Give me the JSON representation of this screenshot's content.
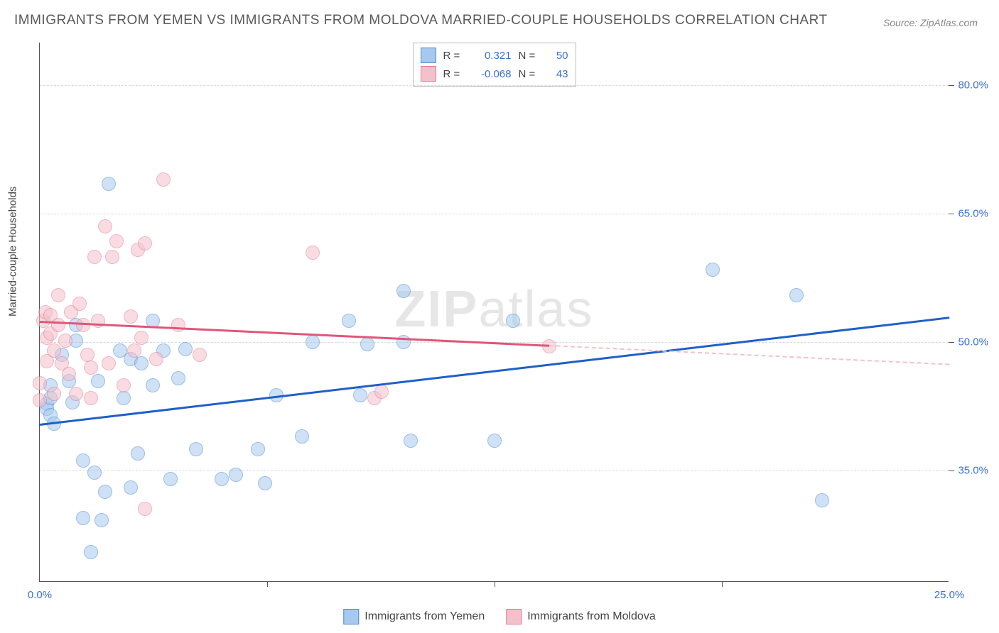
{
  "title": "IMMIGRANTS FROM YEMEN VS IMMIGRANTS FROM MOLDOVA MARRIED-COUPLE HOUSEHOLDS CORRELATION CHART",
  "source": "Source: ZipAtlas.com",
  "watermark_a": "ZIP",
  "watermark_b": "atlas",
  "ylabel": "Married-couple Households",
  "chart": {
    "type": "scatter",
    "background_color": "#ffffff",
    "grid_color": "#d8d8d8",
    "axis_color": "#555555",
    "xlim": [
      0,
      25
    ],
    "ylim": [
      22,
      85
    ],
    "xticks_major": [
      0,
      25
    ],
    "xticks_minor": [
      6.25,
      12.5,
      18.75
    ],
    "yticks": [
      35,
      50,
      65,
      80
    ],
    "xtick_labels": [
      "0.0%",
      "25.0%"
    ],
    "ytick_labels": [
      "35.0%",
      "50.0%",
      "65.0%",
      "80.0%"
    ],
    "tick_label_color": "#3a6fd8",
    "tick_label_fontsize": 15,
    "point_radius": 10,
    "point_opacity": 0.55,
    "series": [
      {
        "name": "Immigrants from Yemen",
        "fill_color": "#a7c9ee",
        "stroke_color": "#4b8ad6",
        "r_label": "R =",
        "r_value": "0.321",
        "n_label": "N =",
        "n_value": "50",
        "trend": {
          "x1": 0,
          "y1": 40.5,
          "x2": 25,
          "y2": 53,
          "solid_until_x": 25,
          "color": "#1f5fc9"
        },
        "points": [
          [
            0.2,
            42.8
          ],
          [
            0.2,
            42.2
          ],
          [
            0.3,
            41.5
          ],
          [
            0.3,
            43.5
          ],
          [
            0.3,
            45
          ],
          [
            0.4,
            40.5
          ],
          [
            0.6,
            48.5
          ],
          [
            0.8,
            45.5
          ],
          [
            0.9,
            43
          ],
          [
            1.0,
            52
          ],
          [
            1.0,
            50.2
          ],
          [
            1.2,
            36.2
          ],
          [
            1.2,
            29.5
          ],
          [
            1.4,
            25.5
          ],
          [
            1.5,
            34.8
          ],
          [
            1.6,
            45.5
          ],
          [
            1.7,
            29.2
          ],
          [
            1.8,
            32.5
          ],
          [
            1.9,
            68.5
          ],
          [
            2.2,
            49
          ],
          [
            2.3,
            43.5
          ],
          [
            2.5,
            48
          ],
          [
            2.5,
            33
          ],
          [
            2.7,
            37
          ],
          [
            2.8,
            47.5
          ],
          [
            3.1,
            45
          ],
          [
            3.1,
            52.5
          ],
          [
            3.4,
            49
          ],
          [
            3.6,
            34
          ],
          [
            3.8,
            45.8
          ],
          [
            4.0,
            49.2
          ],
          [
            4.3,
            37.5
          ],
          [
            5.0,
            34
          ],
          [
            5.4,
            34.5
          ],
          [
            6.0,
            37.5
          ],
          [
            6.2,
            33.5
          ],
          [
            6.5,
            43.8
          ],
          [
            7.2,
            39
          ],
          [
            7.5,
            50
          ],
          [
            8.5,
            52.5
          ],
          [
            8.8,
            43.8
          ],
          [
            9.0,
            49.8
          ],
          [
            10.0,
            50
          ],
          [
            10.0,
            56
          ],
          [
            10.2,
            38.5
          ],
          [
            12.5,
            38.5
          ],
          [
            13.0,
            52.5
          ],
          [
            18.5,
            58.5
          ],
          [
            20.8,
            55.5
          ],
          [
            21.5,
            31.5
          ]
        ]
      },
      {
        "name": "Immigrants from Moldova",
        "fill_color": "#f3c1cb",
        "stroke_color": "#e47a96",
        "r_label": "R =",
        "r_value": "-0.068",
        "n_label": "N =",
        "n_value": "43",
        "trend": {
          "x1": 0,
          "y1": 52.5,
          "x2": 25,
          "y2": 47.5,
          "solid_until_x": 14,
          "color": "#e0567a"
        },
        "points": [
          [
            0.0,
            43.2
          ],
          [
            0.0,
            45.2
          ],
          [
            0.1,
            52.5
          ],
          [
            0.15,
            53.5
          ],
          [
            0.2,
            50.5
          ],
          [
            0.2,
            47.8
          ],
          [
            0.3,
            53.2
          ],
          [
            0.3,
            51
          ],
          [
            0.4,
            49
          ],
          [
            0.4,
            44
          ],
          [
            0.5,
            55.5
          ],
          [
            0.5,
            52
          ],
          [
            0.6,
            47.5
          ],
          [
            0.7,
            50.2
          ],
          [
            0.8,
            46.3
          ],
          [
            0.85,
            53.5
          ],
          [
            1.0,
            44
          ],
          [
            1.1,
            54.5
          ],
          [
            1.2,
            52
          ],
          [
            1.3,
            48.5
          ],
          [
            1.4,
            47
          ],
          [
            1.4,
            43.5
          ],
          [
            1.5,
            60
          ],
          [
            1.6,
            52.5
          ],
          [
            1.8,
            63.5
          ],
          [
            1.9,
            47.5
          ],
          [
            2.0,
            60
          ],
          [
            2.1,
            61.8
          ],
          [
            2.3,
            45
          ],
          [
            2.5,
            53
          ],
          [
            2.6,
            49
          ],
          [
            2.7,
            60.8
          ],
          [
            2.8,
            50.5
          ],
          [
            2.9,
            61.5
          ],
          [
            2.9,
            30.5
          ],
          [
            3.2,
            48
          ],
          [
            3.4,
            69
          ],
          [
            3.8,
            52
          ],
          [
            4.4,
            48.5
          ],
          [
            7.5,
            60.5
          ],
          [
            9.2,
            43.5
          ],
          [
            9.4,
            44.2
          ],
          [
            14.0,
            49.5
          ]
        ]
      }
    ]
  },
  "legend_bottom": [
    {
      "swatch_fill": "#a7c9ee",
      "swatch_stroke": "#4b8ad6",
      "label": "Immigrants from Yemen"
    },
    {
      "swatch_fill": "#f3c1cb",
      "swatch_stroke": "#e47a96",
      "label": "Immigrants from Moldova"
    }
  ]
}
